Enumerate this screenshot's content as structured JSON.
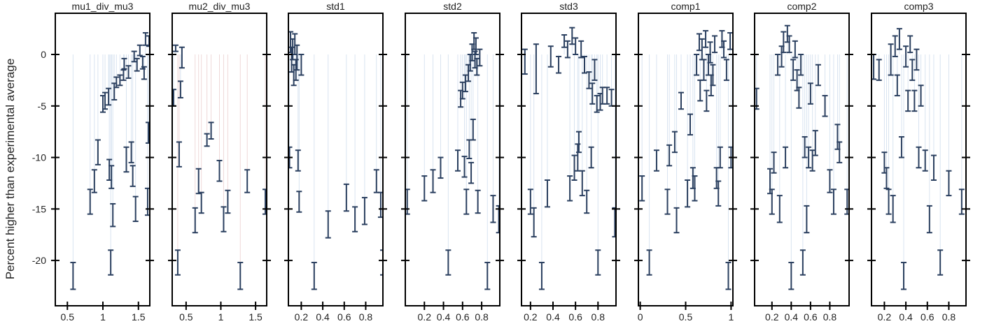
{
  "figure": {
    "ylabel": "Percent higher than experimental average",
    "yticks": [
      0,
      -5,
      -10,
      -15,
      -20
    ],
    "ylim": [
      -24.4,
      4.0
    ],
    "colors": {
      "point": "#2a3f5f",
      "stem": "#c8d8ea",
      "stem_alt": "#e8c8c8",
      "frame": "#000000"
    }
  },
  "chart_data": [
    {
      "type": "scatter",
      "title": "mu1_div_mu3",
      "xlim": [
        0.33,
        1.66
      ],
      "xticks": [
        0.5,
        1,
        1.5
      ],
      "points": [
        [
          0.58,
          -21.5,
          1.3
        ],
        [
          0.82,
          -14.3,
          1.2
        ],
        [
          0.88,
          -12.3,
          1.1
        ],
        [
          0.93,
          -9.5,
          1.2
        ],
        [
          1.0,
          -4.8,
          0.8
        ],
        [
          1.03,
          -4.5,
          0.8
        ],
        [
          1.08,
          -4.1,
          0.8
        ],
        [
          1.09,
          -11.2,
          1.0
        ],
        [
          1.11,
          -20.2,
          1.2
        ],
        [
          1.12,
          -11.9,
          1.1
        ],
        [
          1.14,
          -15.6,
          1.1
        ],
        [
          1.16,
          -3.6,
          0.8
        ],
        [
          1.19,
          -2.7,
          0.5
        ],
        [
          1.24,
          -2.5,
          0.5
        ],
        [
          1.29,
          -2.0,
          0.5
        ],
        [
          1.3,
          -0.9,
          0.5
        ],
        [
          1.33,
          -10.2,
          1.2
        ],
        [
          1.36,
          -1.7,
          0.6
        ],
        [
          1.4,
          -9.5,
          1.0
        ],
        [
          1.42,
          -11.8,
          1.0
        ],
        [
          1.44,
          -0.2,
          0.5
        ],
        [
          1.46,
          -15.0,
          1.2
        ],
        [
          1.48,
          -1.0,
          0.6
        ],
        [
          1.52,
          0.4,
          0.5
        ],
        [
          1.56,
          -0.8,
          0.6
        ],
        [
          1.58,
          -1.8,
          0.6
        ],
        [
          1.6,
          1.5,
          0.6
        ],
        [
          1.63,
          -14.3,
          1.3
        ],
        [
          1.64,
          -7.6,
          1.0
        ],
        [
          1.65,
          1.3,
          0.5
        ]
      ]
    },
    {
      "type": "scatter",
      "title": "mu2_div_mu3",
      "xlim": [
        0.3,
        1.66
      ],
      "xticks": [
        0.5,
        1,
        1.5
      ],
      "points": [
        [
          0.32,
          -4.2,
          0.8
        ],
        [
          0.35,
          0.6,
          0.3
        ],
        [
          0.38,
          -20.2,
          1.2
        ],
        [
          0.4,
          -9.7,
          1.2
        ],
        [
          0.42,
          -3.4,
          0.8
        ],
        [
          0.44,
          -0.3,
          1.0
        ],
        [
          0.63,
          -16.1,
          1.2
        ],
        [
          0.68,
          -12.3,
          1.2
        ],
        [
          0.72,
          -14.4,
          1.0
        ],
        [
          0.8,
          -8.3,
          0.6
        ],
        [
          0.86,
          -7.4,
          0.8
        ],
        [
          0.98,
          -11.3,
          1.0
        ],
        [
          1.04,
          -16.0,
          1.2
        ],
        [
          1.1,
          -14.3,
          1.1
        ],
        [
          1.28,
          -21.5,
          1.3
        ],
        [
          1.38,
          -12.3,
          1.1
        ],
        [
          1.64,
          -14.3,
          1.2
        ]
      ]
    },
    {
      "type": "scatter",
      "title": "std1",
      "xlim": [
        0.08,
        0.96
      ],
      "xticks": [
        0.2,
        0.4,
        0.6,
        0.8
      ],
      "points": [
        [
          0.09,
          -10.0,
          1.0
        ],
        [
          0.1,
          1.2,
          1.0
        ],
        [
          0.11,
          -0.5,
          1.2
        ],
        [
          0.12,
          0.5,
          1.0
        ],
        [
          0.13,
          -2.0,
          1.0
        ],
        [
          0.14,
          1.0,
          1.0
        ],
        [
          0.15,
          -1.5,
          1.0
        ],
        [
          0.16,
          -0.3,
          1.2
        ],
        [
          0.17,
          -10.3,
          1.0
        ],
        [
          0.18,
          -14.3,
          1.0
        ],
        [
          0.2,
          -1.0,
          1.0
        ],
        [
          0.32,
          -21.5,
          1.3
        ],
        [
          0.45,
          -16.5,
          1.3
        ],
        [
          0.62,
          -13.9,
          1.3
        ],
        [
          0.7,
          -16.0,
          1.2
        ],
        [
          0.79,
          -15.2,
          1.3
        ],
        [
          0.9,
          -12.3,
          1.1
        ],
        [
          0.94,
          -14.6,
          1.2
        ],
        [
          0.96,
          -20.2,
          1.2
        ]
      ]
    },
    {
      "type": "scatter",
      "title": "std2",
      "xlim": [
        0.0,
        0.99
      ],
      "xticks": [
        0.2,
        0.4,
        0.6,
        0.8
      ],
      "points": [
        [
          0.02,
          -14.3,
          1.2
        ],
        [
          0.2,
          -13.0,
          1.2
        ],
        [
          0.29,
          -12.3,
          1.1
        ],
        [
          0.37,
          -11.0,
          1.0
        ],
        [
          0.45,
          -20.2,
          1.2
        ],
        [
          0.55,
          -10.3,
          1.0
        ],
        [
          0.58,
          -4.3,
          0.8
        ],
        [
          0.6,
          -3.5,
          0.8
        ],
        [
          0.62,
          -10.9,
          1.0
        ],
        [
          0.63,
          -2.8,
          0.8
        ],
        [
          0.64,
          -14.3,
          1.2
        ],
        [
          0.66,
          -1.8,
          0.8
        ],
        [
          0.67,
          -9.2,
          0.9
        ],
        [
          0.68,
          -0.8,
          0.8
        ],
        [
          0.69,
          -11.5,
          1.0
        ],
        [
          0.7,
          0.2,
          0.8
        ],
        [
          0.71,
          -7.3,
          1.0
        ],
        [
          0.72,
          1.3,
          0.8
        ],
        [
          0.73,
          -0.5,
          0.8
        ],
        [
          0.74,
          0.8,
          0.8
        ],
        [
          0.75,
          -1.2,
          0.8
        ],
        [
          0.76,
          -14.3,
          1.1
        ],
        [
          0.78,
          -0.3,
          0.8
        ],
        [
          0.86,
          -21.5,
          1.3
        ],
        [
          0.92,
          -15.0,
          1.3
        ],
        [
          0.98,
          -16.0,
          1.3
        ]
      ]
    },
    {
      "type": "scatter",
      "title": "std3",
      "xlim": [
        0.12,
        0.96
      ],
      "xticks": [
        0.2,
        0.4,
        0.6,
        0.8
      ],
      "points": [
        [
          0.15,
          -0.7,
          1.2
        ],
        [
          0.2,
          -14.3,
          1.2
        ],
        [
          0.23,
          -16.3,
          1.4
        ],
        [
          0.25,
          -1.4,
          2.4
        ],
        [
          0.3,
          -21.5,
          1.3
        ],
        [
          0.35,
          -13.5,
          1.3
        ],
        [
          0.38,
          -0.2,
          1.0
        ],
        [
          0.45,
          -1.0,
          0.8
        ],
        [
          0.5,
          1.3,
          0.6
        ],
        [
          0.53,
          0.5,
          0.8
        ],
        [
          0.55,
          -13.0,
          1.2
        ],
        [
          0.57,
          1.8,
          0.8
        ],
        [
          0.59,
          -11.0,
          1.2
        ],
        [
          0.6,
          0.8,
          0.8
        ],
        [
          0.62,
          -10.0,
          1.3
        ],
        [
          0.63,
          -8.5,
          1.0
        ],
        [
          0.65,
          0.5,
          0.8
        ],
        [
          0.66,
          -12.5,
          1.2
        ],
        [
          0.68,
          -1.0,
          0.8
        ],
        [
          0.7,
          -14.3,
          1.1
        ],
        [
          0.72,
          -2.5,
          0.8
        ],
        [
          0.74,
          -10.0,
          1.0
        ],
        [
          0.75,
          -3.8,
          1.0
        ],
        [
          0.77,
          -1.5,
          1.0
        ],
        [
          0.79,
          -4.8,
          0.8
        ],
        [
          0.8,
          -20.2,
          1.2
        ],
        [
          0.82,
          -4.6,
          0.8
        ],
        [
          0.84,
          -4.0,
          0.8
        ],
        [
          0.88,
          -4.0,
          0.8
        ],
        [
          0.92,
          -4.2,
          0.8
        ],
        [
          0.95,
          -16.3,
          1.4
        ]
      ]
    },
    {
      "type": "scatter",
      "title": "comp1",
      "xlim": [
        -0.02,
        1.02
      ],
      "xticks": [
        0,
        0.5,
        1
      ],
      "points": [
        [
          0.02,
          -13.0,
          1.2
        ],
        [
          0.1,
          -20.2,
          1.2
        ],
        [
          0.18,
          -10.3,
          1.0
        ],
        [
          0.3,
          -14.3,
          1.2
        ],
        [
          0.32,
          -9.8,
          1.0
        ],
        [
          0.38,
          -8.5,
          1.0
        ],
        [
          0.4,
          -16.1,
          1.2
        ],
        [
          0.45,
          -4.5,
          0.8
        ],
        [
          0.52,
          -13.5,
          1.3
        ],
        [
          0.55,
          -6.8,
          1.0
        ],
        [
          0.58,
          -12.0,
          1.0
        ],
        [
          0.6,
          -13.0,
          1.2
        ],
        [
          0.62,
          -1.0,
          1.0
        ],
        [
          0.65,
          1.2,
          0.8
        ],
        [
          0.66,
          -3.5,
          1.0
        ],
        [
          0.68,
          0.5,
          1.0
        ],
        [
          0.7,
          -1.5,
          1.0
        ],
        [
          0.72,
          1.5,
          0.8
        ],
        [
          0.73,
          -4.5,
          1.0
        ],
        [
          0.75,
          -1.0,
          1.0
        ],
        [
          0.77,
          0.2,
          1.0
        ],
        [
          0.78,
          -3.0,
          1.0
        ],
        [
          0.8,
          -2.0,
          1.0
        ],
        [
          0.82,
          1.0,
          0.8
        ],
        [
          0.84,
          -12.0,
          1.0
        ],
        [
          0.86,
          -13.5,
          1.2
        ],
        [
          0.88,
          -10.0,
          1.0
        ],
        [
          0.9,
          1.5,
          0.8
        ],
        [
          0.92,
          0.5,
          0.8
        ],
        [
          0.95,
          -1.5,
          1.0
        ],
        [
          0.97,
          -21.5,
          1.3
        ],
        [
          0.99,
          1.3,
          0.8
        ],
        [
          1.0,
          -10.0,
          1.0
        ]
      ]
    },
    {
      "type": "scatter",
      "title": "comp2",
      "xlim": [
        0.02,
        1.0
      ],
      "xticks": [
        0.2,
        0.4,
        0.6,
        0.8
      ],
      "points": [
        [
          0.04,
          -4.3,
          1.0
        ],
        [
          0.18,
          -12.3,
          1.2
        ],
        [
          0.2,
          -14.3,
          1.2
        ],
        [
          0.22,
          -10.5,
          1.0
        ],
        [
          0.26,
          -1.0,
          1.0
        ],
        [
          0.28,
          -15.0,
          1.3
        ],
        [
          0.3,
          -0.2,
          1.0
        ],
        [
          0.32,
          1.2,
          1.0
        ],
        [
          0.34,
          -10.0,
          1.0
        ],
        [
          0.36,
          2.0,
          0.8
        ],
        [
          0.38,
          1.0,
          0.8
        ],
        [
          0.4,
          -21.5,
          1.3
        ],
        [
          0.42,
          -1.5,
          1.0
        ],
        [
          0.44,
          0.5,
          0.8
        ],
        [
          0.46,
          -2.5,
          1.0
        ],
        [
          0.48,
          -4.2,
          1.0
        ],
        [
          0.5,
          -1.0,
          1.0
        ],
        [
          0.52,
          -20.2,
          1.2
        ],
        [
          0.54,
          -9.0,
          1.0
        ],
        [
          0.56,
          -16.0,
          1.3
        ],
        [
          0.58,
          -10.0,
          1.0
        ],
        [
          0.6,
          -3.8,
          1.0
        ],
        [
          0.62,
          -10.3,
          1.0
        ],
        [
          0.65,
          -8.6,
          1.2
        ],
        [
          0.68,
          -2.0,
          1.0
        ],
        [
          0.75,
          -5.0,
          1.0
        ],
        [
          0.8,
          -12.3,
          1.1
        ],
        [
          0.84,
          -14.3,
          1.2
        ],
        [
          0.88,
          -8.0,
          1.2
        ],
        [
          0.9,
          -9.5,
          1.0
        ],
        [
          0.98,
          -14.3,
          1.2
        ]
      ]
    },
    {
      "type": "scatter",
      "title": "comp3",
      "xlim": [
        0.08,
        0.96
      ],
      "xticks": [
        0.2,
        0.4,
        0.6,
        0.8
      ],
      "points": [
        [
          0.1,
          -1.2,
          1.2
        ],
        [
          0.15,
          -1.5,
          1.0
        ],
        [
          0.2,
          -10.5,
          1.0
        ],
        [
          0.22,
          -12.0,
          1.0
        ],
        [
          0.24,
          -14.3,
          1.2
        ],
        [
          0.26,
          -0.5,
          1.5
        ],
        [
          0.28,
          -15.0,
          1.3
        ],
        [
          0.3,
          0.8,
          1.0
        ],
        [
          0.32,
          -3.0,
          1.0
        ],
        [
          0.34,
          1.5,
          1.0
        ],
        [
          0.36,
          -9.0,
          1.0
        ],
        [
          0.38,
          -21.5,
          1.3
        ],
        [
          0.4,
          -0.2,
          1.0
        ],
        [
          0.42,
          -4.5,
          1.0
        ],
        [
          0.44,
          1.0,
          0.8
        ],
        [
          0.46,
          -1.5,
          1.0
        ],
        [
          0.48,
          -4.5,
          1.0
        ],
        [
          0.5,
          -0.5,
          1.0
        ],
        [
          0.52,
          -10.0,
          1.0
        ],
        [
          0.54,
          -4.0,
          1.0
        ],
        [
          0.58,
          -10.3,
          1.0
        ],
        [
          0.62,
          -16.0,
          1.3
        ],
        [
          0.66,
          -11.0,
          1.2
        ],
        [
          0.72,
          -20.2,
          1.2
        ],
        [
          0.8,
          -12.5,
          1.2
        ],
        [
          0.92,
          -14.3,
          1.2
        ]
      ]
    }
  ]
}
